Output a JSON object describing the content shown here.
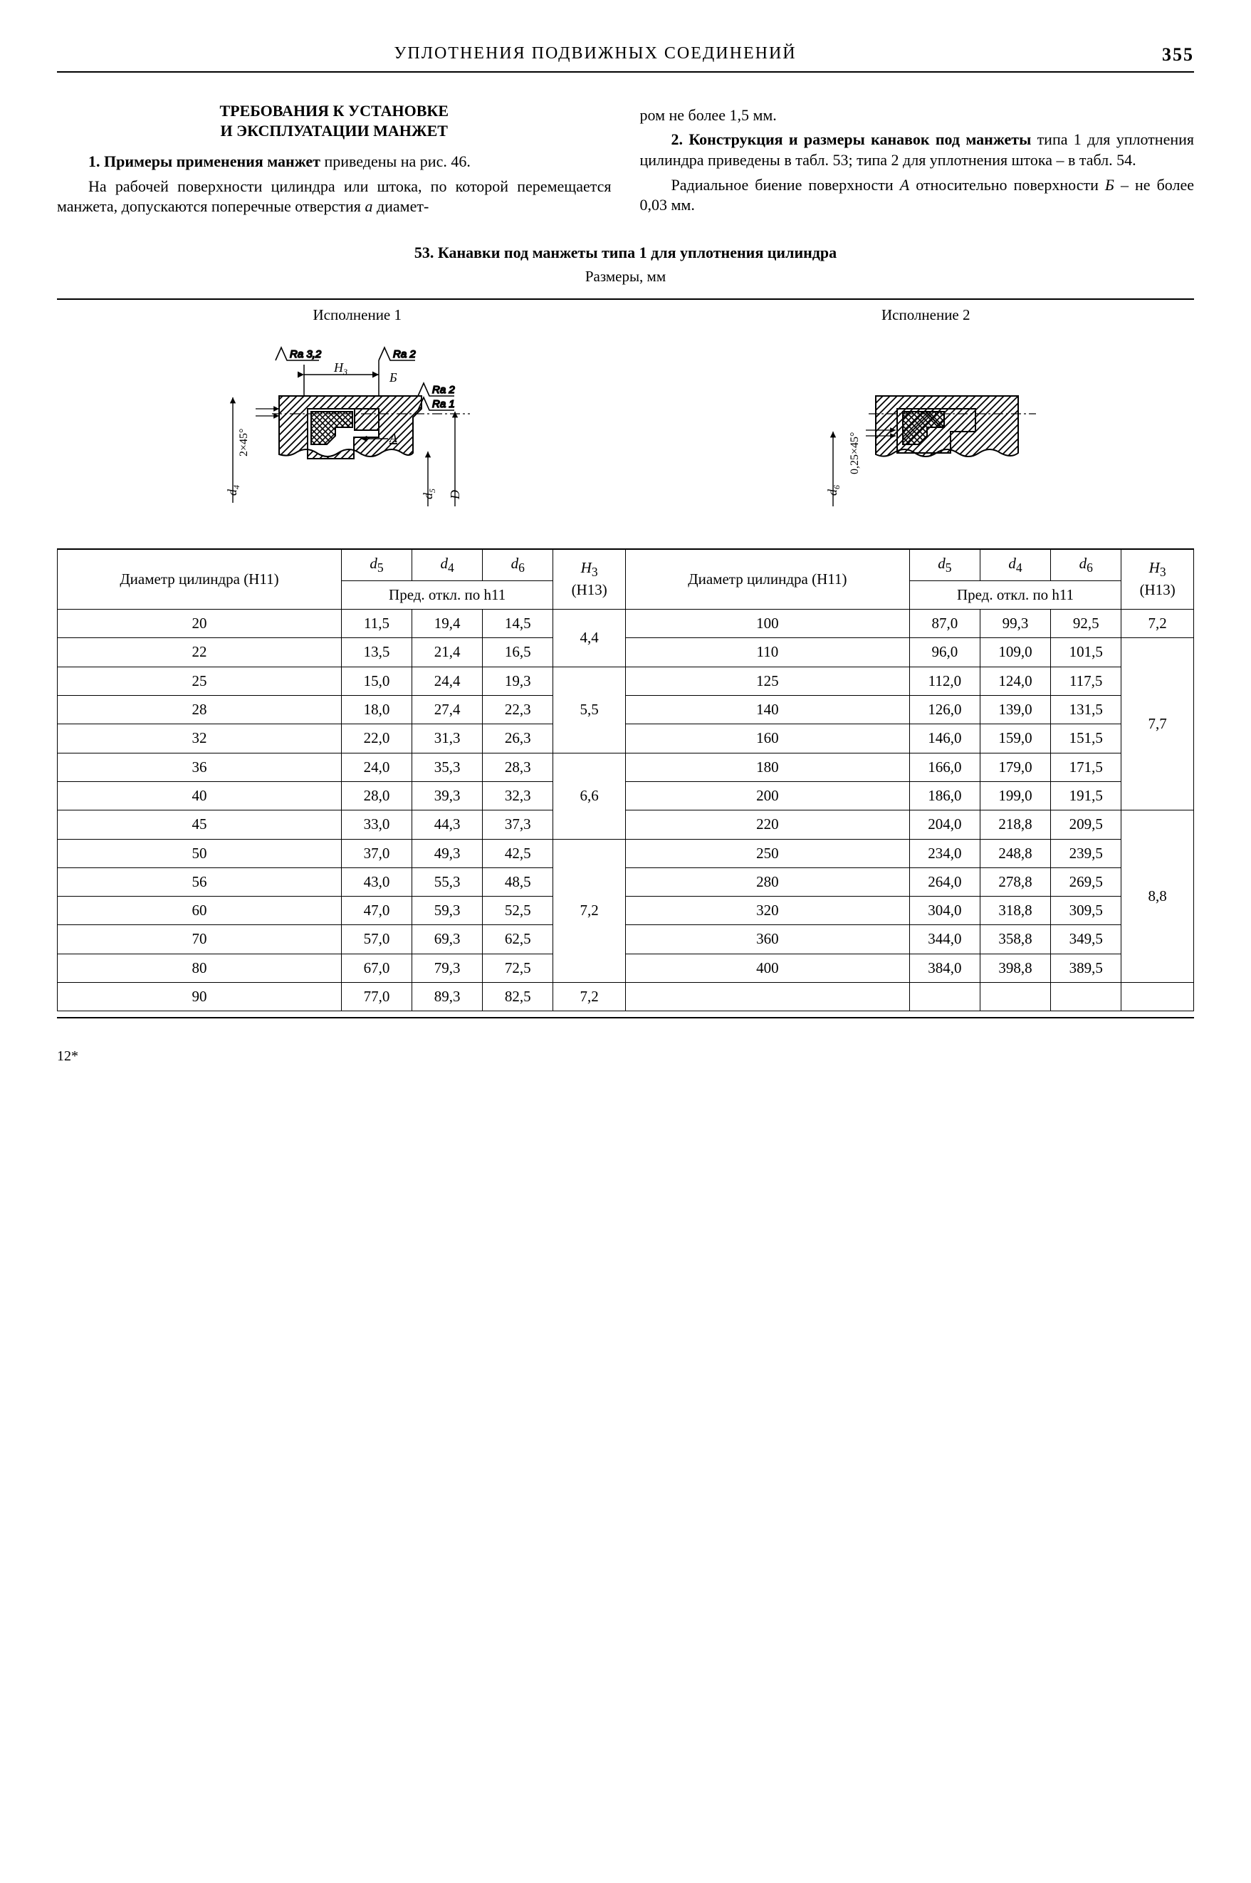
{
  "header": {
    "title": "УПЛОТНЕНИЯ ПОДВИЖНЫХ СОЕДИНЕНИЙ",
    "page_number": "355"
  },
  "section": {
    "heading_line1": "ТРЕБОВАНИЯ К УСТАНОВКЕ",
    "heading_line2": "И ЭКСПЛУАТАЦИИ МАНЖЕТ",
    "p1_lead": "1. Примеры применения манжет",
    "p1_rest": " приве­дены на рис. 46.",
    "p2": "На рабочей поверхности цилиндра или штока, по которой перемещается манжета, допускаются поперечные отверстия ",
    "p2_a": "a",
    "p2_tail": " диамет-",
    "right_p1": "ром не более 1,5 мм.",
    "right_p2_lead": "2. Конструкция и размеры канавок под манжеты",
    "right_p2_rest": " типа 1 для уплотнения цилиндра при­ведены в табл. 53; типа 2 для уплотнения штока – в табл. 54.",
    "right_p3_a": "Радиальное биение поверхности ",
    "right_p3_A": "A",
    "right_p3_b": " относи­тельно поверхности ",
    "right_p3_B": "Б",
    "right_p3_c": " – не более 0,03 мм."
  },
  "table53": {
    "title": "53. Канавки под манжеты типа 1 для уплотнения цилиндра",
    "subtitle": "Размеры, мм",
    "exec1": "Исполнение 1",
    "exec2": "Исполнение 2",
    "headers": {
      "diam": "Диаметр цилиндра (Н11)",
      "d5": "d",
      "d5sub": "5",
      "d4": "d",
      "d4sub": "4",
      "d6": "d",
      "d6sub": "6",
      "h3": "H",
      "h3sub": "3",
      "h3tol": "(Н13)",
      "tol": "Пред. откл. по h11"
    },
    "diagram_labels": {
      "ra32": "Ra 3,2",
      "ra2": "Ra 2",
      "ra2b": "Ra 2",
      "ra1": "Ra 1",
      "h3": "H",
      "h3sub": "3",
      "b": "Б",
      "a": "A",
      "d4": "d",
      "d4sub": "4",
      "d5": "d",
      "d5sub": "5",
      "D": "D",
      "d6": "d",
      "d6sub": "6",
      "cham1": "2×45°",
      "cham2": "0,25×45°"
    },
    "left_rows": [
      {
        "D": "20",
        "d5": "11,5",
        "d4": "19,4",
        "d6": "14,5",
        "H3": "4,4",
        "H3_rowspan": 1,
        "border_bottom": false
      },
      {
        "D": "22",
        "d5": "13,5",
        "d4": "21,4",
        "d6": "16,5",
        "H3": "",
        "H3_rowspan": 0,
        "border_bottom": true
      },
      {
        "D": "25",
        "d5": "15,0",
        "d4": "24,4",
        "d6": "19,3",
        "H3": "",
        "H3_rowspan": 0,
        "border_bottom": false
      },
      {
        "D": "28",
        "d5": "18,0",
        "d4": "27,4",
        "d6": "22,3",
        "H3": "5,5",
        "H3_rowspan": 3,
        "border_bottom": false
      },
      {
        "D": "32",
        "d5": "22,0",
        "d4": "31,3",
        "d6": "26,3",
        "H3": "",
        "H3_rowspan": 0,
        "border_bottom": true
      },
      {
        "D": "36",
        "d5": "24,0",
        "d4": "35,3",
        "d6": "28,3",
        "H3": "",
        "H3_rowspan": 0,
        "border_bottom": false
      },
      {
        "D": "40",
        "d5": "28,0",
        "d4": "39,3",
        "d6": "32,3",
        "H3": "6,6",
        "H3_rowspan": 3,
        "border_bottom": false
      },
      {
        "D": "45",
        "d5": "33,0",
        "d4": "44,3",
        "d6": "37,3",
        "H3": "",
        "H3_rowspan": 0,
        "border_bottom": true
      },
      {
        "D": "50",
        "d5": "37,0",
        "d4": "49,3",
        "d6": "42,5",
        "H3": "",
        "H3_rowspan": 0,
        "border_bottom": false
      },
      {
        "D": "56",
        "d5": "43,0",
        "d4": "55,3",
        "d6": "48,5",
        "H3": "",
        "H3_rowspan": 0,
        "border_bottom": false
      },
      {
        "D": "60",
        "d5": "47,0",
        "d4": "59,3",
        "d6": "52,5",
        "H3": "7,2",
        "H3_rowspan": 5,
        "border_bottom": false
      },
      {
        "D": "70",
        "d5": "57,0",
        "d4": "69,3",
        "d6": "62,5",
        "H3": "",
        "H3_rowspan": 0,
        "border_bottom": false
      },
      {
        "D": "80",
        "d5": "67,0",
        "d4": "79,3",
        "d6": "72,5",
        "H3": "",
        "H3_rowspan": 0,
        "border_bottom": true
      },
      {
        "D": "90",
        "d5": "77,0",
        "d4": "89,3",
        "d6": "82,5",
        "H3": "7,2",
        "H3_rowspan": 1,
        "border_bottom": true
      }
    ],
    "right_rows": [
      {
        "D": "100",
        "d5": "87,0",
        "d4": "99,3",
        "d6": "92,5",
        "H3": "7,2",
        "H3_rowspan": 1,
        "border_bottom": true
      },
      {
        "D": "110",
        "d5": "96,0",
        "d4": "109,0",
        "d6": "101,5",
        "H3": "",
        "H3_rowspan": 0,
        "border_bottom": false
      },
      {
        "D": "125",
        "d5": "112,0",
        "d4": "124,0",
        "d6": "117,5",
        "H3": "",
        "H3_rowspan": 0,
        "border_bottom": false
      },
      {
        "D": "140",
        "d5": "126,0",
        "d4": "139,0",
        "d6": "131,5",
        "H3": "",
        "H3_rowspan": 0,
        "border_bottom": false
      },
      {
        "D": "160",
        "d5": "146,0",
        "d4": "159,0",
        "d6": "151,5",
        "H3": "7,7",
        "H3_rowspan": 6,
        "border_bottom": false
      },
      {
        "D": "180",
        "d5": "166,0",
        "d4": "179,0",
        "d6": "171,5",
        "H3": "",
        "H3_rowspan": 0,
        "border_bottom": false
      },
      {
        "D": "200",
        "d5": "186,0",
        "d4": "199,0",
        "d6": "191,5",
        "H3": "",
        "H3_rowspan": 0,
        "border_bottom": true
      },
      {
        "D": "220",
        "d5": "204,0",
        "d4": "218,8",
        "d6": "209,5",
        "H3": "",
        "H3_rowspan": 0,
        "border_bottom": false
      },
      {
        "D": "250",
        "d5": "234,0",
        "d4": "248,8",
        "d6": "239,5",
        "H3": "",
        "H3_rowspan": 0,
        "border_bottom": false
      },
      {
        "D": "280",
        "d5": "264,0",
        "d4": "278,8",
        "d6": "269,5",
        "H3": "",
        "H3_rowspan": 0,
        "border_bottom": false
      },
      {
        "D": "320",
        "d5": "304,0",
        "d4": "318,8",
        "d6": "309,5",
        "H3": "8,8",
        "H3_rowspan": 7,
        "border_bottom": false
      },
      {
        "D": "360",
        "d5": "344,0",
        "d4": "358,8",
        "d6": "349,5",
        "H3": "",
        "H3_rowspan": 0,
        "border_bottom": false
      },
      {
        "D": "400",
        "d5": "384,0",
        "d4": "398,8",
        "d6": "389,5",
        "H3": "",
        "H3_rowspan": 0,
        "border_bottom": true
      },
      {
        "D": "",
        "d5": "",
        "d4": "",
        "d6": "",
        "H3": "",
        "H3_rowspan": 0,
        "border_bottom": true
      }
    ]
  },
  "footer_mark": "12*"
}
